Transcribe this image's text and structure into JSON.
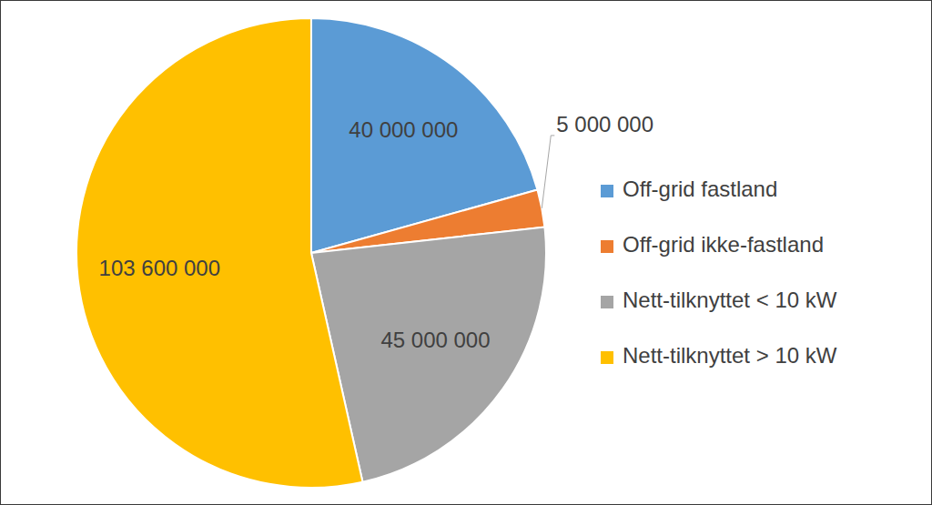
{
  "chart_data": {
    "type": "pie",
    "categories": [
      "Off-grid fastland",
      "Off-grid ikke-fastland",
      "Nett-tilknyttet < 10 kW",
      "Nett-tilknyttet > 10 kW"
    ],
    "values": [
      40000000,
      5000000,
      45000000,
      103600000
    ],
    "value_labels": [
      "40 000 000",
      "5 000 000",
      "45 000 000",
      "103 600 000"
    ],
    "colors": [
      "#5b9bd5",
      "#ed7d31",
      "#a5a5a5",
      "#ffc000"
    ],
    "data_labels": true,
    "legend": "right"
  }
}
